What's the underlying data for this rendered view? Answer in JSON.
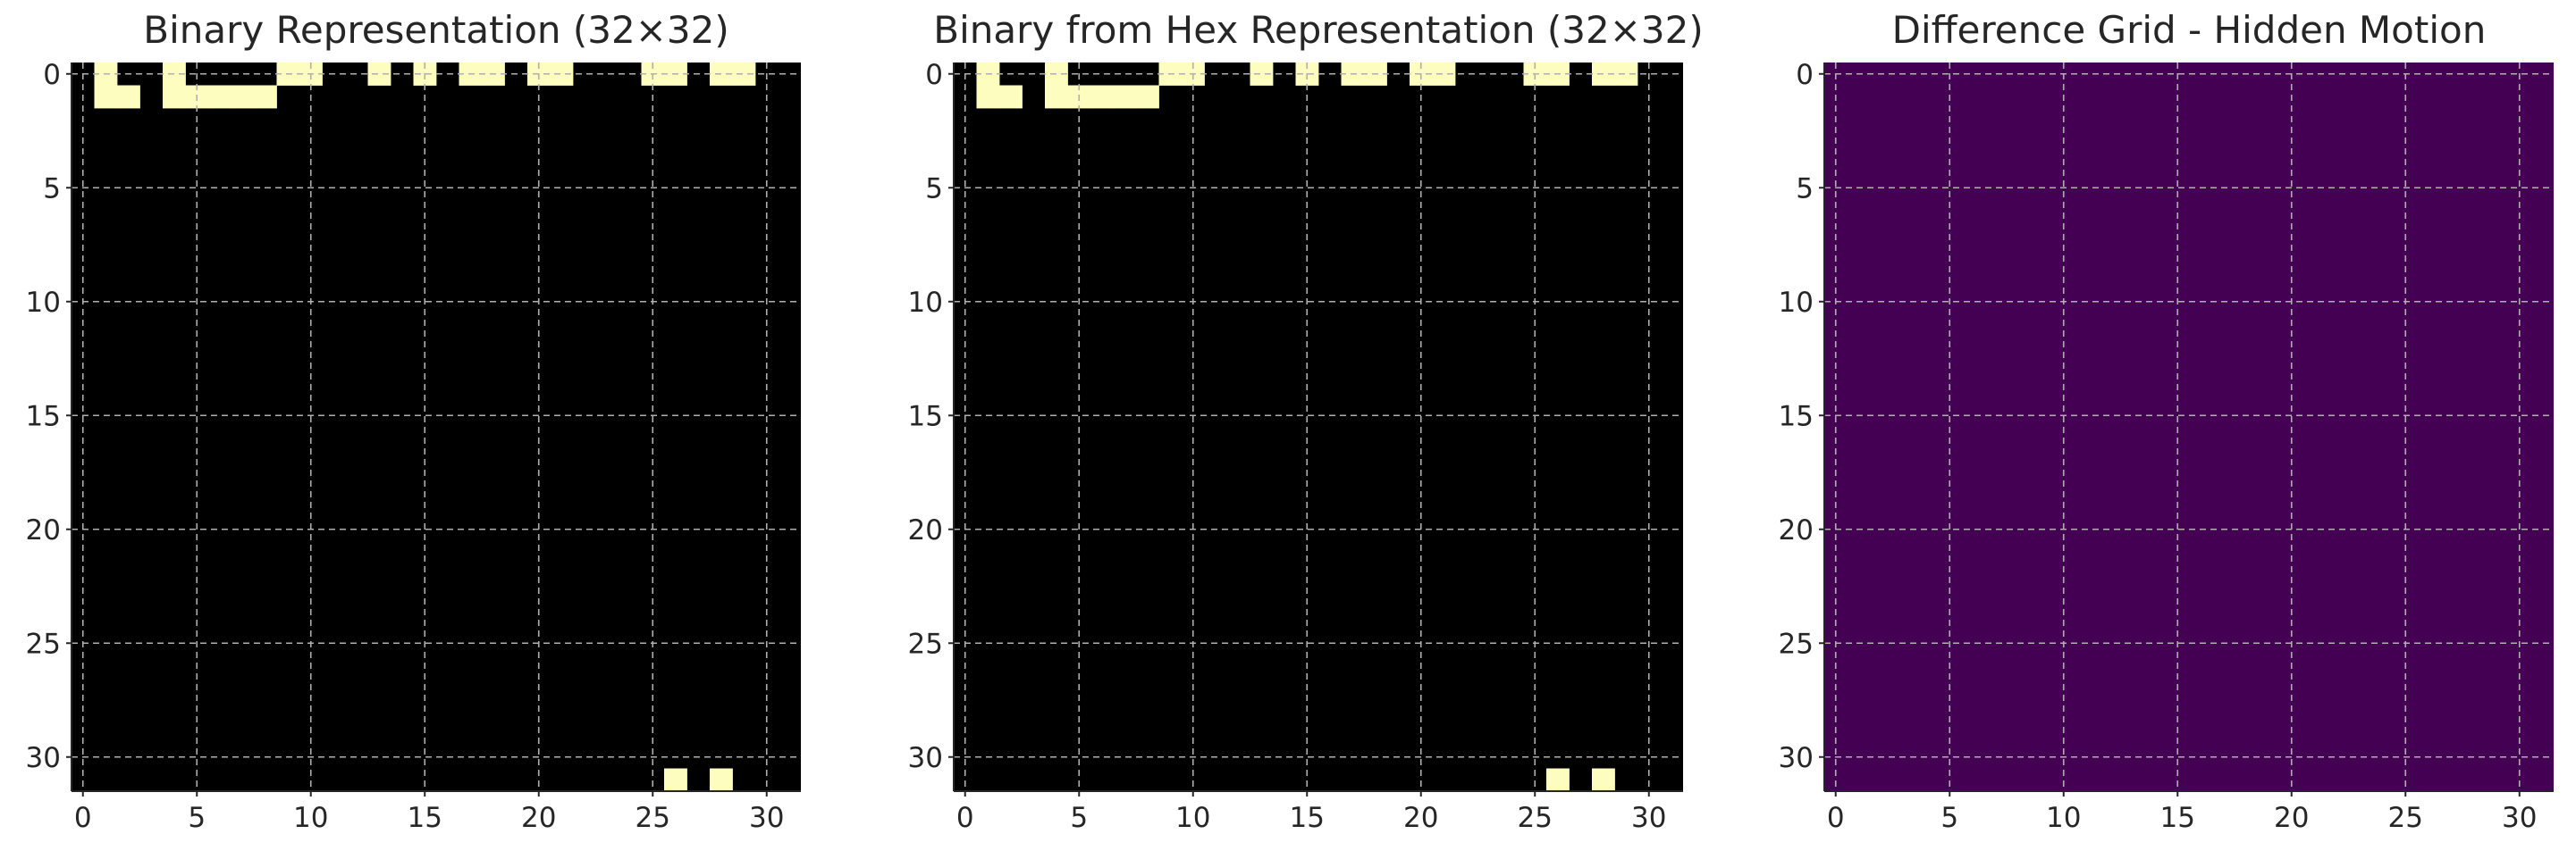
{
  "chart_data": [
    {
      "type": "heatmap",
      "title": "Binary Representation (32×32)",
      "rows": 32,
      "cols": 32,
      "xticks": [
        0,
        5,
        10,
        15,
        20,
        25,
        30
      ],
      "yticks": [
        0,
        5,
        10,
        15,
        20,
        25,
        30
      ],
      "grid": true,
      "colormap": {
        "0": "#000000",
        "1": "#fcfdbf"
      },
      "row_values": {
        "0": [
          0,
          1,
          0,
          0,
          1,
          0,
          0,
          0,
          0,
          1,
          1,
          0,
          0,
          1,
          0,
          1,
          0,
          1,
          1,
          0,
          1,
          1,
          0,
          0,
          0,
          1,
          1,
          0,
          1,
          1,
          0,
          0
        ],
        "1": [
          0,
          1,
          1,
          0,
          1,
          1,
          1,
          1,
          1,
          0,
          0,
          0,
          0,
          0,
          0,
          0,
          0,
          0,
          0,
          0,
          0,
          0,
          0,
          0,
          0,
          0,
          0,
          0,
          0,
          0,
          0,
          0
        ],
        "31": [
          0,
          0,
          0,
          0,
          0,
          0,
          0,
          0,
          0,
          0,
          0,
          0,
          0,
          0,
          0,
          0,
          0,
          0,
          0,
          0,
          0,
          0,
          0,
          0,
          0,
          0,
          1,
          0,
          1,
          0,
          0,
          0
        ]
      },
      "default_value": 0
    },
    {
      "type": "heatmap",
      "title": "Binary from Hex Representation (32×32)",
      "rows": 32,
      "cols": 32,
      "xticks": [
        0,
        5,
        10,
        15,
        20,
        25,
        30
      ],
      "yticks": [
        0,
        5,
        10,
        15,
        20,
        25,
        30
      ],
      "grid": true,
      "colormap": {
        "0": "#000000",
        "1": "#fcfdbf"
      },
      "row_values": {
        "0": [
          0,
          1,
          0,
          0,
          1,
          0,
          0,
          0,
          0,
          1,
          1,
          0,
          0,
          1,
          0,
          1,
          0,
          1,
          1,
          0,
          1,
          1,
          0,
          0,
          0,
          1,
          1,
          0,
          1,
          1,
          0,
          0
        ],
        "1": [
          0,
          1,
          1,
          0,
          1,
          1,
          1,
          1,
          1,
          0,
          0,
          0,
          0,
          0,
          0,
          0,
          0,
          0,
          0,
          0,
          0,
          0,
          0,
          0,
          0,
          0,
          0,
          0,
          0,
          0,
          0,
          0
        ],
        "31": [
          0,
          0,
          0,
          0,
          0,
          0,
          0,
          0,
          0,
          0,
          0,
          0,
          0,
          0,
          0,
          0,
          0,
          0,
          0,
          0,
          0,
          0,
          0,
          0,
          0,
          0,
          1,
          0,
          1,
          0,
          0,
          0
        ]
      },
      "default_value": 0
    },
    {
      "type": "heatmap",
      "title": "Difference Grid - Hidden Motion",
      "rows": 32,
      "cols": 32,
      "xticks": [
        0,
        5,
        10,
        15,
        20,
        25,
        30
      ],
      "yticks": [
        0,
        5,
        10,
        15,
        20,
        25,
        30
      ],
      "grid": true,
      "colormap": {
        "0": "#440154"
      },
      "row_values": {},
      "default_value": 0
    }
  ]
}
